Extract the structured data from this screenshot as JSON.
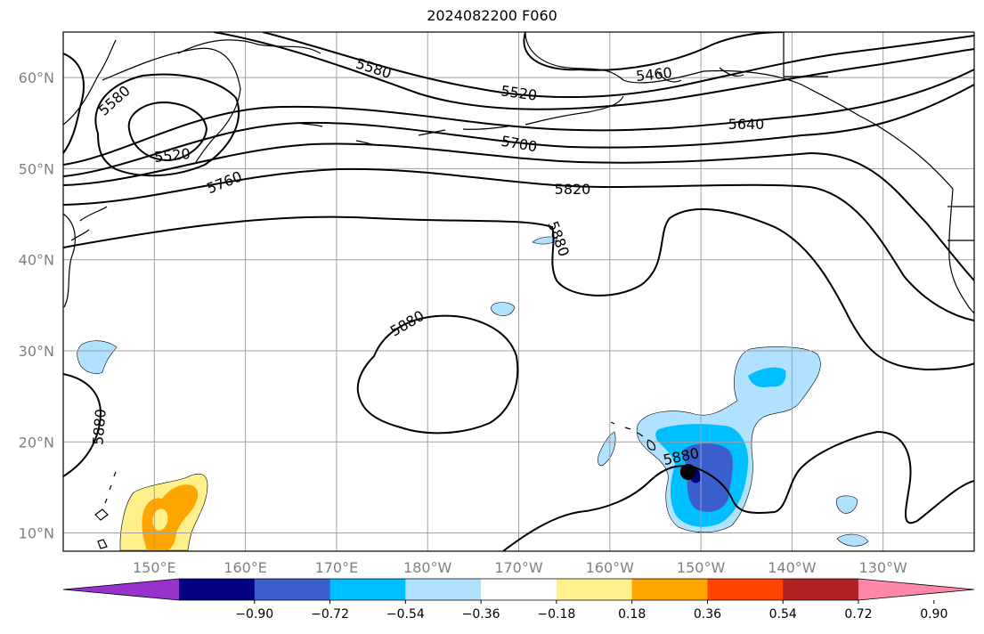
{
  "title": "2024082200 F060",
  "map": {
    "lat_ticks": [
      {
        "label": "60°N",
        "value": 60
      },
      {
        "label": "50°N",
        "value": 50
      },
      {
        "label": "40°N",
        "value": 40
      },
      {
        "label": "30°N",
        "value": 30
      },
      {
        "label": "20°N",
        "value": 20
      },
      {
        "label": "10°N",
        "value": 10
      }
    ],
    "lon_ticks": [
      {
        "label": "150°E",
        "value": 150
      },
      {
        "label": "160°E",
        "value": 160
      },
      {
        "label": "170°E",
        "value": 170
      },
      {
        "label": "180°W",
        "value": 180
      },
      {
        "label": "170°W",
        "value": 190
      },
      {
        "label": "160°W",
        "value": 200
      },
      {
        "label": "150°W",
        "value": 210
      },
      {
        "label": "140°W",
        "value": 220
      },
      {
        "label": "130°W",
        "value": 230
      }
    ],
    "extent": {
      "lon_min": 140,
      "lon_max": 240,
      "lat_min": 8,
      "lat_max": 65
    },
    "contour_labels": [
      "5580",
      "5520",
      "5760",
      "5580",
      "5520",
      "5460",
      "5700",
      "5640",
      "5820",
      "5880",
      "5880",
      "5880",
      "5880"
    ],
    "storm_marker": {
      "lon": 208.6,
      "lat": 16.7
    }
  },
  "colorbar": {
    "colors": [
      "#9932cc",
      "#000080",
      "#3a5fcd",
      "#00bfff",
      "#b0e2ff",
      "#ffffff",
      "#fff08c",
      "#ffa500",
      "#ff4500",
      "#b22222",
      "#ff88a8"
    ],
    "labels": [
      "−0.90",
      "−0.72",
      "−0.54",
      "−0.36",
      "−0.18",
      "0.18",
      "0.36",
      "0.54",
      "0.72",
      "0.90"
    ]
  }
}
